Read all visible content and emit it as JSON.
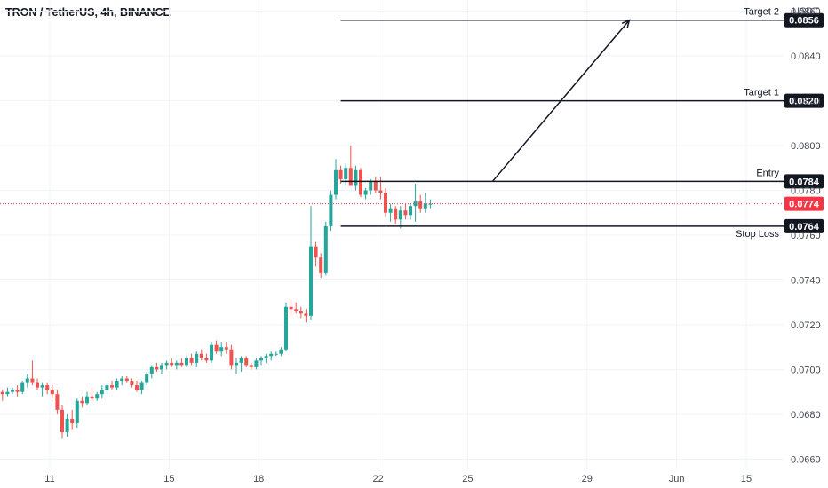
{
  "header": {
    "title": "TRON / TetherUS, 4h, BINANCE"
  },
  "colors": {
    "up": "#26a69a",
    "down": "#ef5350",
    "line": "#131722",
    "badge": "#131722",
    "price": "#f23645",
    "grid": "#f0f3fa"
  },
  "chart_data": {
    "type": "candlestick",
    "title": "TRON / TetherUS, 4h, BINANCE",
    "ylabel": "USDT",
    "ylim": [
      0.0655,
      0.0865
    ],
    "y_ticks": [
      "0.0660",
      "0.0680",
      "0.0700",
      "0.0720",
      "0.0740",
      "0.0760",
      "0.0780",
      "0.0800",
      "0.0820",
      "0.0840",
      "0.0860"
    ],
    "x_ticks": [
      {
        "label": "11",
        "x": 9.5
      },
      {
        "label": "15",
        "x": 33.5
      },
      {
        "label": "18",
        "x": 51.5
      },
      {
        "label": "22",
        "x": 75.5
      },
      {
        "label": "25",
        "x": 93.5
      },
      {
        "label": "29",
        "x": 117.5
      },
      {
        "label": "Jun",
        "x": 135.5
      },
      {
        "label": "15",
        "x": 149.5
      }
    ],
    "x_range": [
      -0.5,
      157
    ],
    "levels": [
      {
        "name": "Target 2",
        "price": 0.0856,
        "badge": "0.0856"
      },
      {
        "name": "Target 1",
        "price": 0.082,
        "badge": "0.0820"
      },
      {
        "name": "Entry",
        "price": 0.0784,
        "badge": "0.0784"
      },
      {
        "name": "Stop Loss",
        "price": 0.0764,
        "badge": "0.0764"
      }
    ],
    "current_price": {
      "value": 0.0774,
      "label": "0.0774"
    },
    "projection": [
      {
        "x": 98.5,
        "y": 0.0784
      },
      {
        "x": 126,
        "y": 0.0856
      }
    ],
    "candles": [
      [
        0.069,
        0.0691,
        0.0686,
        0.0689
      ],
      [
        0.0689,
        0.0692,
        0.0688,
        0.069
      ],
      [
        0.069,
        0.0692,
        0.0689,
        0.0691
      ],
      [
        0.0691,
        0.0693,
        0.0688,
        0.069
      ],
      [
        0.069,
        0.0695,
        0.0689,
        0.0694
      ],
      [
        0.0694,
        0.0698,
        0.0692,
        0.0696
      ],
      [
        0.0696,
        0.0704,
        0.0693,
        0.0694
      ],
      [
        0.0694,
        0.0696,
        0.0691,
        0.0692
      ],
      [
        0.0692,
        0.0694,
        0.0688,
        0.0693
      ],
      [
        0.0693,
        0.0694,
        0.0689,
        0.0691
      ],
      [
        0.0691,
        0.0693,
        0.0687,
        0.0689
      ],
      [
        0.0689,
        0.0691,
        0.068,
        0.0682
      ],
      [
        0.0682,
        0.0684,
        0.0669,
        0.0672
      ],
      [
        0.0672,
        0.068,
        0.067,
        0.0678
      ],
      [
        0.0678,
        0.0682,
        0.0673,
        0.0676
      ],
      [
        0.0676,
        0.0687,
        0.0674,
        0.0686
      ],
      [
        0.0686,
        0.0688,
        0.0683,
        0.0685
      ],
      [
        0.0685,
        0.069,
        0.0684,
        0.0688
      ],
      [
        0.0688,
        0.0692,
        0.0686,
        0.0687
      ],
      [
        0.0687,
        0.069,
        0.0686,
        0.0689
      ],
      [
        0.0689,
        0.0693,
        0.0687,
        0.0691
      ],
      [
        0.0691,
        0.0694,
        0.0689,
        0.0693
      ],
      [
        0.0693,
        0.0695,
        0.0691,
        0.0692
      ],
      [
        0.0692,
        0.0696,
        0.0691,
        0.0695
      ],
      [
        0.0695,
        0.0697,
        0.0693,
        0.0696
      ],
      [
        0.0696,
        0.0697,
        0.0694,
        0.0695
      ],
      [
        0.0695,
        0.0696,
        0.0692,
        0.0693
      ],
      [
        0.0693,
        0.0695,
        0.069,
        0.0691
      ],
      [
        0.0691,
        0.0695,
        0.0689,
        0.0694
      ],
      [
        0.0694,
        0.0699,
        0.0693,
        0.0698
      ],
      [
        0.0698,
        0.0702,
        0.0696,
        0.0701
      ],
      [
        0.0701,
        0.0703,
        0.0699,
        0.07
      ],
      [
        0.07,
        0.0703,
        0.0698,
        0.0702
      ],
      [
        0.0702,
        0.0704,
        0.07,
        0.0703
      ],
      [
        0.0703,
        0.0705,
        0.0701,
        0.0702
      ],
      [
        0.0702,
        0.0704,
        0.07,
        0.0703
      ],
      [
        0.0703,
        0.0705,
        0.0701,
        0.0702
      ],
      [
        0.0702,
        0.0706,
        0.0701,
        0.0705
      ],
      [
        0.0705,
        0.0707,
        0.0702,
        0.0703
      ],
      [
        0.0703,
        0.0708,
        0.0701,
        0.0707
      ],
      [
        0.0707,
        0.0709,
        0.0704,
        0.0705
      ],
      [
        0.0705,
        0.0707,
        0.0703,
        0.0704
      ],
      [
        0.0704,
        0.0712,
        0.0703,
        0.0711
      ],
      [
        0.0711,
        0.0713,
        0.0707,
        0.0708
      ],
      [
        0.0708,
        0.0712,
        0.0706,
        0.071
      ],
      [
        0.071,
        0.0712,
        0.0707,
        0.0709
      ],
      [
        0.0709,
        0.0711,
        0.07,
        0.0702
      ],
      [
        0.0702,
        0.0705,
        0.0698,
        0.0703
      ],
      [
        0.0703,
        0.0706,
        0.0699,
        0.0705
      ],
      [
        0.0705,
        0.0706,
        0.0701,
        0.0702
      ],
      [
        0.0702,
        0.0703,
        0.07,
        0.0701
      ],
      [
        0.0701,
        0.0705,
        0.07,
        0.0704
      ],
      [
        0.0704,
        0.0706,
        0.0702,
        0.0705
      ],
      [
        0.0705,
        0.0707,
        0.0703,
        0.0706
      ],
      [
        0.0706,
        0.0708,
        0.0704,
        0.0707
      ],
      [
        0.0707,
        0.0708,
        0.0706,
        0.0707
      ],
      [
        0.0707,
        0.071,
        0.0706,
        0.0709
      ],
      [
        0.0709,
        0.073,
        0.0708,
        0.0728
      ],
      [
        0.0728,
        0.0731,
        0.0724,
        0.0727
      ],
      [
        0.0727,
        0.073,
        0.0725,
        0.0726
      ],
      [
        0.0726,
        0.0728,
        0.0723,
        0.0725
      ],
      [
        0.0725,
        0.0727,
        0.0721,
        0.0724
      ],
      [
        0.0724,
        0.0773,
        0.0722,
        0.0755
      ],
      [
        0.0755,
        0.0757,
        0.0746,
        0.075
      ],
      [
        0.075,
        0.0752,
        0.0741,
        0.0743
      ],
      [
        0.0743,
        0.0766,
        0.0742,
        0.0764
      ],
      [
        0.0764,
        0.078,
        0.0762,
        0.0778
      ],
      [
        0.0778,
        0.0794,
        0.0776,
        0.0789
      ],
      [
        0.0789,
        0.0791,
        0.0783,
        0.0785
      ],
      [
        0.0785,
        0.0792,
        0.0782,
        0.079
      ],
      [
        0.079,
        0.08,
        0.0784,
        0.0782
      ],
      [
        0.0782,
        0.0791,
        0.078,
        0.0789
      ],
      [
        0.0789,
        0.079,
        0.0777,
        0.0778
      ],
      [
        0.0778,
        0.0781,
        0.0776,
        0.078
      ],
      [
        0.078,
        0.0785,
        0.0778,
        0.0784
      ],
      [
        0.0784,
        0.0786,
        0.0779,
        0.078
      ],
      [
        0.078,
        0.0786,
        0.0776,
        0.0779
      ],
      [
        0.0779,
        0.0781,
        0.0768,
        0.077
      ],
      [
        0.077,
        0.0774,
        0.0766,
        0.0772
      ],
      [
        0.0772,
        0.0773,
        0.0765,
        0.0767
      ],
      [
        0.0767,
        0.0773,
        0.0763,
        0.0771
      ],
      [
        0.0771,
        0.0774,
        0.0767,
        0.0769
      ],
      [
        0.0769,
        0.0774,
        0.0767,
        0.0773
      ],
      [
        0.0773,
        0.0783,
        0.0766,
        0.0775
      ],
      [
        0.0775,
        0.0778,
        0.077,
        0.0772
      ],
      [
        0.0772,
        0.0779,
        0.077,
        0.0774
      ],
      [
        0.0774,
        0.0776,
        0.0772,
        0.0774
      ]
    ]
  }
}
